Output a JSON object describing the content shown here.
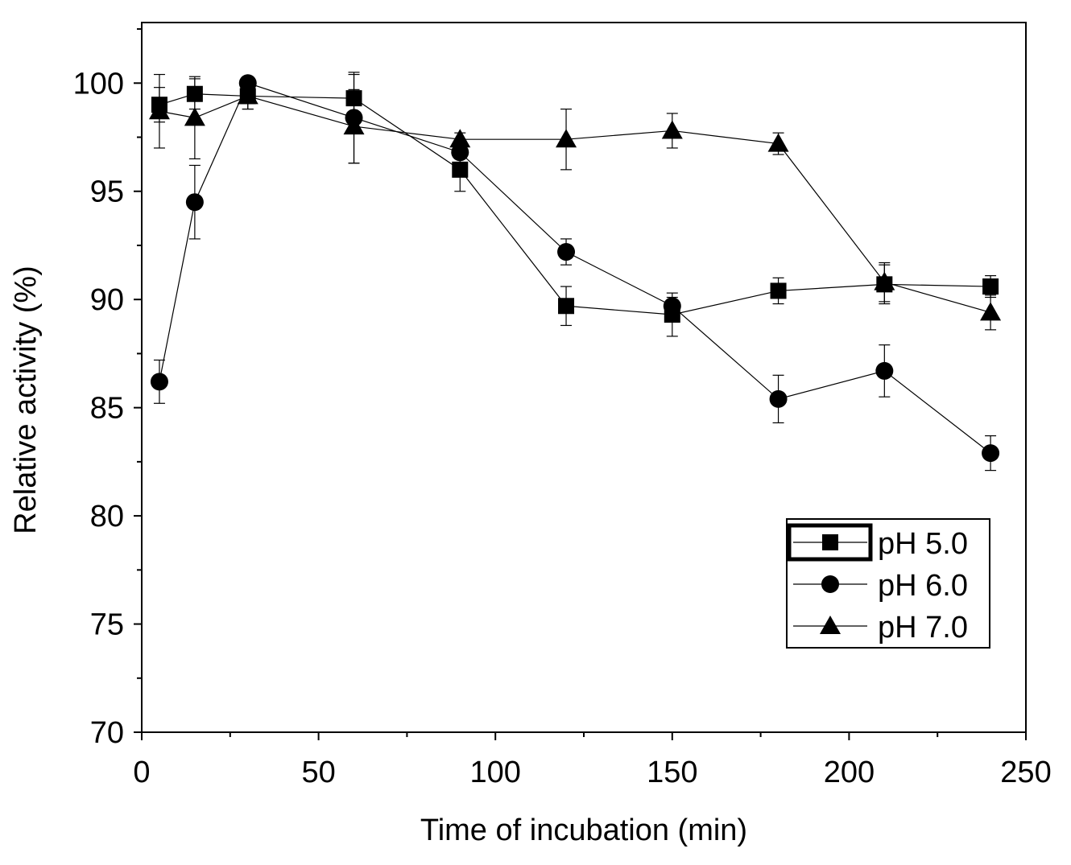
{
  "chart_data": {
    "type": "line",
    "title": "",
    "xlabel": "Time of incubation (min)",
    "ylabel": "Relative activity (%)",
    "xlim": [
      0,
      250
    ],
    "ylim": [
      70,
      102.8
    ],
    "xticks": [
      0,
      50,
      100,
      150,
      200,
      250
    ],
    "yticks": [
      70,
      75,
      80,
      85,
      90,
      95,
      100
    ],
    "x_minor_step": 25,
    "y_minor_step": 2.5,
    "grid": false,
    "legend_position": "bottom-right",
    "x": [
      5,
      15,
      30,
      60,
      90,
      120,
      150,
      180,
      210,
      240
    ],
    "series": [
      {
        "name": "pH 5.0",
        "marker": "square",
        "values": [
          99.0,
          99.5,
          99.4,
          99.3,
          96.0,
          89.7,
          89.3,
          90.4,
          90.7,
          90.6
        ],
        "errors": [
          0.8,
          0.7,
          0.6,
          1.1,
          1.0,
          0.9,
          1.0,
          0.6,
          0.9,
          0.5
        ]
      },
      {
        "name": "pH 6.0",
        "marker": "circle",
        "values": [
          86.2,
          94.5,
          100.0,
          98.4,
          96.8,
          92.2,
          89.7,
          85.4,
          86.7,
          82.9
        ],
        "errors": [
          1.0,
          1.7,
          0.3,
          2.1,
          0.3,
          0.6,
          0.4,
          1.1,
          1.2,
          0.8
        ]
      },
      {
        "name": "pH 7.0",
        "marker": "triangle",
        "values": [
          98.7,
          98.4,
          99.4,
          98.0,
          97.4,
          97.4,
          97.8,
          97.2,
          90.8,
          89.4
        ],
        "errors": [
          1.7,
          1.9,
          0.6,
          1.7,
          0.3,
          1.4,
          0.8,
          0.5,
          0.9,
          0.8
        ]
      }
    ],
    "colors": {
      "line": "#000000",
      "marker": "#000000"
    }
  }
}
